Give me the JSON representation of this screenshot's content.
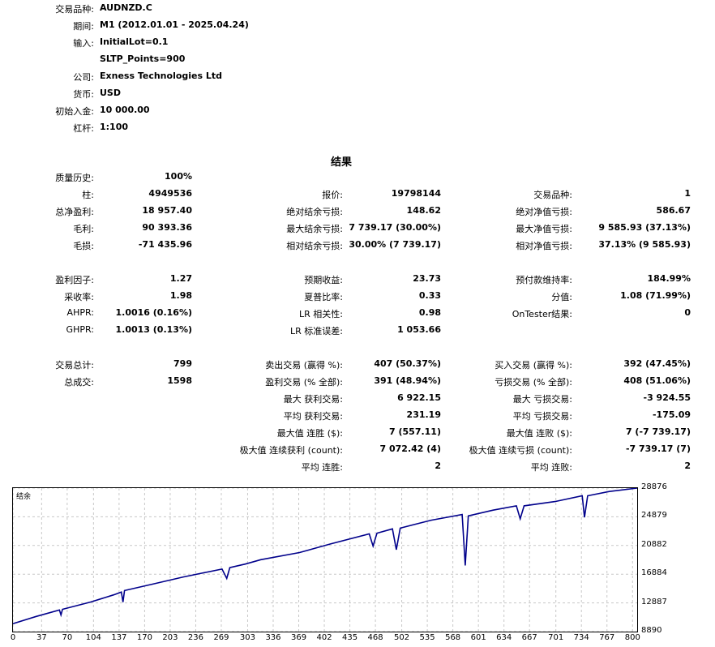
{
  "settings": [
    {
      "label": "交易品种:",
      "value": "AUDNZD.C"
    },
    {
      "label": "期间:",
      "value": "M1 (2012.01.01 - 2025.04.24)"
    },
    {
      "label": "输入:",
      "value": "InitialLot=0.1"
    },
    {
      "label": "",
      "value": "SLTP_Points=900"
    },
    {
      "label": "公司:",
      "value": "Exness Technologies Ltd"
    },
    {
      "label": "货币:",
      "value": "USD"
    },
    {
      "label": "初始入金:",
      "value": "10 000.00"
    },
    {
      "label": "杠杆:",
      "value": "1:100"
    }
  ],
  "results_title": "结果",
  "stats_rows": [
    [
      {
        "l": "质量历史:",
        "v": "100%"
      },
      null,
      null
    ],
    [
      {
        "l": "柱:",
        "v": "4949536"
      },
      {
        "l": "报价:",
        "v": "19798144"
      },
      {
        "l": "交易品种:",
        "v": "1"
      }
    ],
    [
      {
        "l": "总净盈利:",
        "v": "18 957.40"
      },
      {
        "l": "绝对结余亏损:",
        "v": "148.62"
      },
      {
        "l": "绝对净值亏损:",
        "v": "586.67"
      }
    ],
    [
      {
        "l": "毛利:",
        "v": "90 393.36"
      },
      {
        "l": "最大结余亏损:",
        "v": "7 739.17 (30.00%)"
      },
      {
        "l": "最大净值亏损:",
        "v": "9 585.93 (37.13%)"
      }
    ],
    [
      {
        "l": "毛损:",
        "v": "-71 435.96"
      },
      {
        "l": "相对结余亏损:",
        "v": "30.00% (7 739.17)"
      },
      {
        "l": "相对净值亏损:",
        "v": "37.13% (9 585.93)"
      }
    ],
    null,
    [
      {
        "l": "盈利因子:",
        "v": "1.27"
      },
      {
        "l": "预期收益:",
        "v": "23.73"
      },
      {
        "l": "预付款维持率:",
        "v": "184.99%"
      }
    ],
    [
      {
        "l": "采收率:",
        "v": "1.98"
      },
      {
        "l": "夏普比率:",
        "v": "0.33"
      },
      {
        "l": "分值:",
        "v": "1.08 (71.99%)"
      }
    ],
    [
      {
        "l": "AHPR:",
        "v": "1.0016 (0.16%)"
      },
      {
        "l": "LR 相关性:",
        "v": "0.98"
      },
      {
        "l": "OnTester结果:",
        "v": "0"
      }
    ],
    [
      {
        "l": "GHPR:",
        "v": "1.0013 (0.13%)"
      },
      {
        "l": "LR 标准误差:",
        "v": "1 053.66"
      },
      null
    ],
    null,
    [
      {
        "l": "交易总计:",
        "v": "799"
      },
      {
        "l": "卖出交易 (赢得 %):",
        "v": "407 (50.37%)"
      },
      {
        "l": "买入交易 (赢得 %):",
        "v": "392 (47.45%)"
      }
    ],
    [
      {
        "l": "总成交:",
        "v": "1598"
      },
      {
        "l": "盈利交易 (% 全部):",
        "v": "391 (48.94%)"
      },
      {
        "l": "亏损交易 (% 全部):",
        "v": "408 (51.06%)"
      }
    ],
    [
      null,
      {
        "l": "最大 获利交易:",
        "v": "6 922.15"
      },
      {
        "l": "最大 亏损交易:",
        "v": "-3 924.55"
      }
    ],
    [
      null,
      {
        "l": "平均 获利交易:",
        "v": "231.19"
      },
      {
        "l": "平均 亏损交易:",
        "v": "-175.09"
      }
    ],
    [
      null,
      {
        "l": "最大值 连胜 ($):",
        "v": "7 (557.11)"
      },
      {
        "l": "最大值 连败 ($):",
        "v": "7 (-7 739.17)"
      }
    ],
    [
      null,
      {
        "l": "极大值 连续获利 (count):",
        "v": "7 072.42 (4)"
      },
      {
        "l": "极大值 连续亏损 (count):",
        "v": "-7 739.17 (7)"
      }
    ],
    [
      null,
      {
        "l": "平均 连胜:",
        "v": "2"
      },
      {
        "l": "平均 连败:",
        "v": "2"
      }
    ]
  ],
  "chart_data": {
    "type": "line",
    "legend": "结余",
    "color": "#00008b",
    "grid": true,
    "xlim": [
      0,
      806
    ],
    "ylim": [
      8890,
      28876
    ],
    "x_ticks": [
      "0",
      "37",
      "70",
      "104",
      "137",
      "170",
      "203",
      "236",
      "269",
      "303",
      "336",
      "369",
      "402",
      "435",
      "468",
      "502",
      "535",
      "568",
      "601",
      "634",
      "667",
      "701",
      "734",
      "767",
      "800"
    ],
    "y_ticks": [
      "28876",
      "24879",
      "20882",
      "16884",
      "12887",
      "8890"
    ],
    "series": [
      {
        "name": "结余",
        "points": [
          [
            0,
            10000
          ],
          [
            30,
            11000
          ],
          [
            60,
            11900
          ],
          [
            62,
            11200
          ],
          [
            64,
            12000
          ],
          [
            100,
            13000
          ],
          [
            130,
            14000
          ],
          [
            140,
            14400
          ],
          [
            142,
            13000
          ],
          [
            144,
            14600
          ],
          [
            180,
            15500
          ],
          [
            220,
            16500
          ],
          [
            270,
            17600
          ],
          [
            276,
            16300
          ],
          [
            280,
            17800
          ],
          [
            300,
            18300
          ],
          [
            320,
            18900
          ],
          [
            370,
            19900
          ],
          [
            410,
            21100
          ],
          [
            460,
            22500
          ],
          [
            465,
            20800
          ],
          [
            470,
            22600
          ],
          [
            490,
            23200
          ],
          [
            495,
            20300
          ],
          [
            500,
            23300
          ],
          [
            540,
            24400
          ],
          [
            580,
            25200
          ],
          [
            584,
            18100
          ],
          [
            588,
            25000
          ],
          [
            620,
            25800
          ],
          [
            650,
            26400
          ],
          [
            655,
            24600
          ],
          [
            660,
            26400
          ],
          [
            700,
            27000
          ],
          [
            735,
            27800
          ],
          [
            738,
            24800
          ],
          [
            742,
            27800
          ],
          [
            770,
            28400
          ],
          [
            806,
            28876
          ]
        ]
      }
    ]
  }
}
